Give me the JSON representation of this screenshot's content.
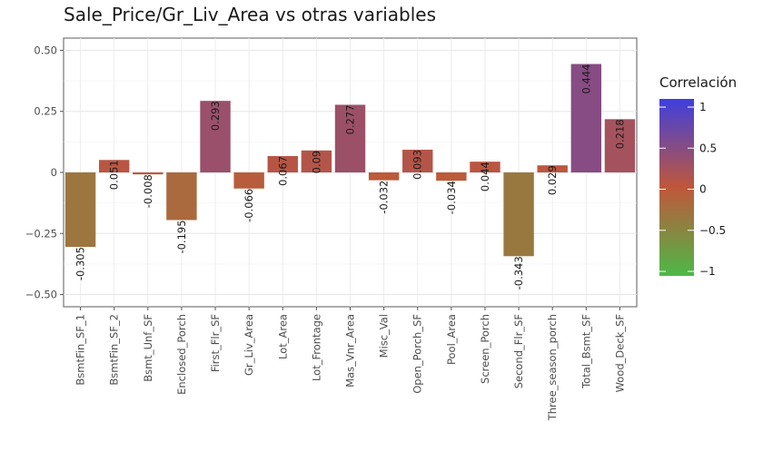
{
  "chart_data": {
    "type": "bar",
    "title": "Sale_Price/Gr_Liv_Area vs otras variables",
    "xlabel": "",
    "ylabel": "",
    "ylim": [
      -0.55,
      0.55
    ],
    "y_ticks": [
      {
        "value": 0.5,
        "label": "0.50"
      },
      {
        "value": 0.25,
        "label": "0.25"
      },
      {
        "value": 0,
        "label": "0"
      },
      {
        "value": -0.25,
        "label": "−0.25"
      },
      {
        "value": -0.5,
        "label": "−0.50"
      }
    ],
    "categories": [
      "BsmtFin_SF_1",
      "BsmtFin_SF_2",
      "Bsmt_Unf_SF",
      "Enclosed_Porch",
      "First_Flr_SF",
      "Gr_Liv_Area",
      "Lot_Area",
      "Lot_Frontage",
      "Mas_Vnr_Area",
      "Misc_Val",
      "Open_Porch_SF",
      "Pool_Area",
      "Screen_Porch",
      "Second_Flr_SF",
      "Three_season_porch",
      "Total_Bsmt_SF",
      "Wood_Deck_SF"
    ],
    "values": [
      -0.305,
      0.051,
      -0.008,
      -0.195,
      0.293,
      -0.066,
      0.067,
      0.09,
      0.277,
      -0.032,
      0.093,
      -0.034,
      0.044,
      -0.343,
      0.029,
      0.444,
      0.218
    ],
    "labels": [
      "-0.305",
      "0.051",
      "-0.008",
      "-0.195",
      "0.293",
      "-0.066",
      "0.067",
      "0.09",
      "0.277",
      "-0.032",
      "0.093",
      "-0.034",
      "0.044",
      "-0.343",
      "0.029",
      "0.444",
      "0.218"
    ],
    "grid": true,
    "legend": {
      "title": "Correlación",
      "position": "right",
      "ticks": [
        {
          "value": 1,
          "label": "1"
        },
        {
          "value": 0.5,
          "label": "0.5"
        },
        {
          "value": 0,
          "label": "0"
        },
        {
          "value": -0.5,
          "label": "−0.5"
        },
        {
          "value": -1,
          "label": "−1"
        }
      ],
      "colors": {
        "low": "#4db848",
        "mid": "#c0573a",
        "high": "#3f3fde"
      }
    }
  }
}
